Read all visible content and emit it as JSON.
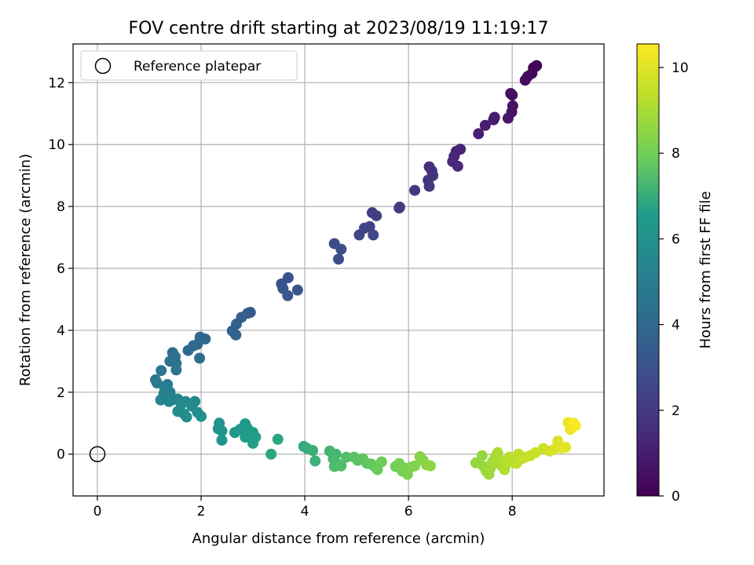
{
  "chart_data": {
    "type": "scatter",
    "title": "FOV centre drift starting at 2023/08/19 11:19:17",
    "xlabel": "Angular distance from reference (arcmin)",
    "ylabel": "Rotation from reference (arcmin)",
    "xlim": [
      -0.47,
      9.77
    ],
    "ylim": [
      -1.35,
      13.25
    ],
    "xticks": [
      0,
      2,
      4,
      6,
      8
    ],
    "yticks": [
      0,
      2,
      4,
      6,
      8,
      10,
      12
    ],
    "grid": true,
    "legend": {
      "placement": "top-left",
      "entries": [
        "Reference platepar"
      ]
    },
    "reference_point": {
      "label": "Reference platepar",
      "x": 0,
      "y": 0
    },
    "colorbar": {
      "label": "Hours from first FF file",
      "range": [
        0,
        10.55
      ],
      "ticks": [
        0,
        2,
        4,
        6,
        8,
        10
      ],
      "colormap": [
        "#440154",
        "#482777",
        "#3f4a8a",
        "#31678e",
        "#26838f",
        "#1f9d8a",
        "#6cce5a",
        "#b6de2b",
        "#fee825"
      ]
    },
    "points": [
      {
        "x": 8.47,
        "y": 12.55,
        "t": 0.0
      },
      {
        "x": 8.45,
        "y": 12.52,
        "t": 0.07
      },
      {
        "x": 8.41,
        "y": 12.48,
        "t": 0.14
      },
      {
        "x": 8.38,
        "y": 12.3,
        "t": 0.21
      },
      {
        "x": 8.3,
        "y": 12.2,
        "t": 0.28
      },
      {
        "x": 8.25,
        "y": 12.08,
        "t": 0.35
      },
      {
        "x": 7.97,
        "y": 11.65,
        "t": 0.45
      },
      {
        "x": 8.0,
        "y": 11.6,
        "t": 0.52
      },
      {
        "x": 8.01,
        "y": 11.25,
        "t": 0.6
      },
      {
        "x": 7.99,
        "y": 11.05,
        "t": 0.68
      },
      {
        "x": 7.92,
        "y": 10.85,
        "t": 0.76
      },
      {
        "x": 7.66,
        "y": 10.88,
        "t": 0.84
      },
      {
        "x": 7.64,
        "y": 10.8,
        "t": 0.92
      },
      {
        "x": 7.48,
        "y": 10.62,
        "t": 1.0
      },
      {
        "x": 7.35,
        "y": 10.35,
        "t": 1.08
      },
      {
        "x": 7.0,
        "y": 9.85,
        "t": 1.18
      },
      {
        "x": 6.92,
        "y": 9.78,
        "t": 1.25
      },
      {
        "x": 6.88,
        "y": 9.62,
        "t": 1.32
      },
      {
        "x": 6.85,
        "y": 9.45,
        "t": 1.4
      },
      {
        "x": 6.95,
        "y": 9.3,
        "t": 1.47
      },
      {
        "x": 6.4,
        "y": 9.28,
        "t": 1.58
      },
      {
        "x": 6.45,
        "y": 9.15,
        "t": 1.65
      },
      {
        "x": 6.47,
        "y": 9.0,
        "t": 1.72
      },
      {
        "x": 6.38,
        "y": 8.85,
        "t": 1.8
      },
      {
        "x": 6.4,
        "y": 8.65,
        "t": 1.87
      },
      {
        "x": 6.12,
        "y": 8.52,
        "t": 1.95
      },
      {
        "x": 5.82,
        "y": 7.95,
        "t": 2.08
      },
      {
        "x": 5.83,
        "y": 7.98,
        "t": 2.12
      },
      {
        "x": 5.3,
        "y": 7.8,
        "t": 2.2
      },
      {
        "x": 5.38,
        "y": 7.7,
        "t": 2.27
      },
      {
        "x": 5.25,
        "y": 7.35,
        "t": 2.35
      },
      {
        "x": 5.15,
        "y": 7.3,
        "t": 2.42
      },
      {
        "x": 5.05,
        "y": 7.08,
        "t": 2.5
      },
      {
        "x": 5.32,
        "y": 7.08,
        "t": 2.57
      },
      {
        "x": 4.57,
        "y": 6.8,
        "t": 2.7
      },
      {
        "x": 4.7,
        "y": 6.62,
        "t": 2.78
      },
      {
        "x": 4.65,
        "y": 6.3,
        "t": 2.86
      },
      {
        "x": 3.68,
        "y": 5.7,
        "t": 3.0
      },
      {
        "x": 3.55,
        "y": 5.5,
        "t": 3.06
      },
      {
        "x": 3.58,
        "y": 5.35,
        "t": 3.12
      },
      {
        "x": 3.86,
        "y": 5.3,
        "t": 3.18
      },
      {
        "x": 3.67,
        "y": 5.12,
        "t": 3.24
      },
      {
        "x": 2.95,
        "y": 4.58,
        "t": 3.4
      },
      {
        "x": 2.9,
        "y": 4.55,
        "t": 3.45
      },
      {
        "x": 2.78,
        "y": 4.42,
        "t": 3.52
      },
      {
        "x": 2.68,
        "y": 4.2,
        "t": 3.6
      },
      {
        "x": 2.6,
        "y": 3.98,
        "t": 3.68
      },
      {
        "x": 2.67,
        "y": 3.85,
        "t": 3.75
      },
      {
        "x": 1.98,
        "y": 3.78,
        "t": 3.9
      },
      {
        "x": 2.08,
        "y": 3.72,
        "t": 3.96
      },
      {
        "x": 1.93,
        "y": 3.55,
        "t": 4.02
      },
      {
        "x": 1.85,
        "y": 3.5,
        "t": 4.08
      },
      {
        "x": 1.75,
        "y": 3.35,
        "t": 4.15
      },
      {
        "x": 1.97,
        "y": 3.1,
        "t": 4.22
      },
      {
        "x": 1.45,
        "y": 3.28,
        "t": 4.35
      },
      {
        "x": 1.5,
        "y": 3.15,
        "t": 4.42
      },
      {
        "x": 1.4,
        "y": 3.0,
        "t": 4.5
      },
      {
        "x": 1.52,
        "y": 2.93,
        "t": 4.56
      },
      {
        "x": 1.52,
        "y": 2.72,
        "t": 4.62
      },
      {
        "x": 1.23,
        "y": 2.7,
        "t": 4.7
      },
      {
        "x": 1.12,
        "y": 2.4,
        "t": 4.8
      },
      {
        "x": 1.15,
        "y": 2.3,
        "t": 4.86
      },
      {
        "x": 1.35,
        "y": 2.25,
        "t": 4.92
      },
      {
        "x": 1.3,
        "y": 2.1,
        "t": 4.98
      },
      {
        "x": 1.4,
        "y": 2.0,
        "t": 5.04
      },
      {
        "x": 1.28,
        "y": 1.95,
        "t": 5.1
      },
      {
        "x": 1.42,
        "y": 1.85,
        "t": 5.16
      },
      {
        "x": 1.55,
        "y": 1.78,
        "t": 5.22
      },
      {
        "x": 1.45,
        "y": 1.75,
        "t": 5.28
      },
      {
        "x": 1.22,
        "y": 1.75,
        "t": 5.34
      },
      {
        "x": 1.38,
        "y": 1.7,
        "t": 5.4
      },
      {
        "x": 1.7,
        "y": 1.7,
        "t": 5.46
      },
      {
        "x": 1.88,
        "y": 1.7,
        "t": 5.52
      },
      {
        "x": 1.62,
        "y": 1.62,
        "t": 5.58
      },
      {
        "x": 1.82,
        "y": 1.55,
        "t": 5.64
      },
      {
        "x": 1.55,
        "y": 1.38,
        "t": 5.7
      },
      {
        "x": 1.67,
        "y": 1.3,
        "t": 5.76
      },
      {
        "x": 1.93,
        "y": 1.35,
        "t": 5.82
      },
      {
        "x": 1.72,
        "y": 1.2,
        "t": 5.88
      },
      {
        "x": 2.0,
        "y": 1.22,
        "t": 5.94
      },
      {
        "x": 2.35,
        "y": 1.0,
        "t": 6.05
      },
      {
        "x": 2.33,
        "y": 0.82,
        "t": 6.1
      },
      {
        "x": 2.4,
        "y": 0.75,
        "t": 6.15
      },
      {
        "x": 2.4,
        "y": 0.45,
        "t": 6.2
      },
      {
        "x": 2.65,
        "y": 0.7,
        "t": 6.26
      },
      {
        "x": 2.75,
        "y": 0.8,
        "t": 6.32
      },
      {
        "x": 2.85,
        "y": 0.98,
        "t": 6.38
      },
      {
        "x": 2.9,
        "y": 0.82,
        "t": 6.44
      },
      {
        "x": 2.85,
        "y": 0.55,
        "t": 6.5
      },
      {
        "x": 3.0,
        "y": 0.7,
        "t": 6.56
      },
      {
        "x": 3.05,
        "y": 0.55,
        "t": 6.62
      },
      {
        "x": 3.0,
        "y": 0.35,
        "t": 6.68
      },
      {
        "x": 3.48,
        "y": 0.48,
        "t": 6.78
      },
      {
        "x": 3.35,
        "y": 0.0,
        "t": 6.85
      },
      {
        "x": 3.98,
        "y": 0.25,
        "t": 6.95
      },
      {
        "x": 4.05,
        "y": 0.18,
        "t": 7.0
      },
      {
        "x": 4.15,
        "y": 0.12,
        "t": 7.05
      },
      {
        "x": 4.2,
        "y": -0.22,
        "t": 7.1
      },
      {
        "x": 4.48,
        "y": 0.1,
        "t": 7.2
      },
      {
        "x": 4.6,
        "y": 0.0,
        "t": 7.25
      },
      {
        "x": 4.55,
        "y": -0.15,
        "t": 7.3
      },
      {
        "x": 4.62,
        "y": -0.3,
        "t": 7.35
      },
      {
        "x": 4.57,
        "y": -0.4,
        "t": 7.4
      },
      {
        "x": 4.7,
        "y": -0.38,
        "t": 7.45
      },
      {
        "x": 4.8,
        "y": -0.1,
        "t": 7.5
      },
      {
        "x": 4.95,
        "y": -0.1,
        "t": 7.55
      },
      {
        "x": 5.02,
        "y": -0.2,
        "t": 7.6
      },
      {
        "x": 5.12,
        "y": -0.15,
        "t": 7.65
      },
      {
        "x": 5.2,
        "y": -0.3,
        "t": 7.7
      },
      {
        "x": 5.28,
        "y": -0.32,
        "t": 7.75
      },
      {
        "x": 5.35,
        "y": -0.4,
        "t": 7.8
      },
      {
        "x": 5.4,
        "y": -0.5,
        "t": 7.85
      },
      {
        "x": 5.48,
        "y": -0.25,
        "t": 7.9
      },
      {
        "x": 5.75,
        "y": -0.4,
        "t": 8.0
      },
      {
        "x": 5.82,
        "y": -0.3,
        "t": 8.05
      },
      {
        "x": 5.88,
        "y": -0.55,
        "t": 8.1
      },
      {
        "x": 5.93,
        "y": -0.45,
        "t": 8.15
      },
      {
        "x": 5.98,
        "y": -0.65,
        "t": 8.2
      },
      {
        "x": 6.05,
        "y": -0.42,
        "t": 8.25
      },
      {
        "x": 6.12,
        "y": -0.38,
        "t": 8.3
      },
      {
        "x": 6.22,
        "y": -0.08,
        "t": 8.35
      },
      {
        "x": 6.28,
        "y": -0.2,
        "t": 8.4
      },
      {
        "x": 6.35,
        "y": -0.35,
        "t": 8.45
      },
      {
        "x": 6.42,
        "y": -0.38,
        "t": 8.5
      },
      {
        "x": 7.3,
        "y": -0.28,
        "t": 8.6
      },
      {
        "x": 7.42,
        "y": -0.05,
        "t": 8.65
      },
      {
        "x": 7.45,
        "y": -0.4,
        "t": 8.7
      },
      {
        "x": 7.5,
        "y": -0.55,
        "t": 8.75
      },
      {
        "x": 7.55,
        "y": -0.65,
        "t": 8.8
      },
      {
        "x": 7.58,
        "y": -0.45,
        "t": 8.85
      },
      {
        "x": 7.62,
        "y": -0.25,
        "t": 8.9
      },
      {
        "x": 7.67,
        "y": -0.1,
        "t": 8.95
      },
      {
        "x": 7.72,
        "y": 0.05,
        "t": 9.0
      },
      {
        "x": 7.78,
        "y": -0.35,
        "t": 9.05
      },
      {
        "x": 7.82,
        "y": -0.22,
        "t": 9.1
      },
      {
        "x": 7.85,
        "y": -0.5,
        "t": 9.15
      },
      {
        "x": 7.9,
        "y": -0.3,
        "t": 9.2
      },
      {
        "x": 7.95,
        "y": -0.1,
        "t": 9.25
      },
      {
        "x": 8.0,
        "y": -0.2,
        "t": 9.3
      },
      {
        "x": 8.08,
        "y": -0.3,
        "t": 9.35
      },
      {
        "x": 8.12,
        "y": 0.0,
        "t": 9.4
      },
      {
        "x": 8.18,
        "y": -0.15,
        "t": 9.45
      },
      {
        "x": 8.25,
        "y": -0.1,
        "t": 9.5
      },
      {
        "x": 8.35,
        "y": -0.05,
        "t": 9.55
      },
      {
        "x": 8.45,
        "y": 0.05,
        "t": 9.6
      },
      {
        "x": 8.6,
        "y": 0.18,
        "t": 9.68
      },
      {
        "x": 8.72,
        "y": 0.1,
        "t": 9.75
      },
      {
        "x": 8.8,
        "y": 0.15,
        "t": 9.82
      },
      {
        "x": 8.88,
        "y": 0.42,
        "t": 9.9
      },
      {
        "x": 8.95,
        "y": 0.2,
        "t": 9.98
      },
      {
        "x": 9.03,
        "y": 0.22,
        "t": 10.05
      },
      {
        "x": 9.08,
        "y": 1.02,
        "t": 10.2
      },
      {
        "x": 9.12,
        "y": 0.8,
        "t": 10.3
      },
      {
        "x": 9.18,
        "y": 1.0,
        "t": 10.4
      },
      {
        "x": 9.22,
        "y": 0.92,
        "t": 10.5
      }
    ]
  }
}
